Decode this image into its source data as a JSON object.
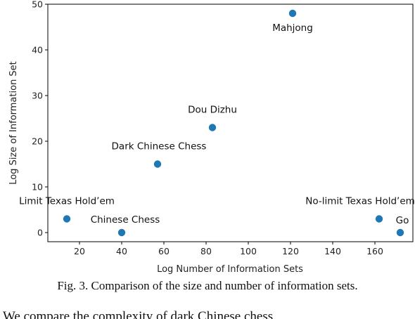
{
  "chart_data": {
    "type": "scatter",
    "xlabel": "Log Number of Information Sets",
    "ylabel": "Log Size of Information Set",
    "xlim": [
      5,
      178
    ],
    "ylim": [
      -2,
      50
    ],
    "xticks": [
      20,
      40,
      60,
      80,
      100,
      120,
      140,
      160
    ],
    "yticks": [
      0,
      10,
      20,
      30,
      40,
      50
    ],
    "grid": false,
    "point_color": "#1f77b4",
    "points": [
      {
        "label": "Limit Texas Hold’em",
        "x": 14,
        "y": 3
      },
      {
        "label": "Chinese Chess",
        "x": 40,
        "y": 0
      },
      {
        "label": "Dark Chinese Chess",
        "x": 57,
        "y": 15
      },
      {
        "label": "Dou Dizhu",
        "x": 83,
        "y": 23
      },
      {
        "label": "Mahjong",
        "x": 121,
        "y": 48
      },
      {
        "label": "No-limit Texas Hold’em",
        "x": 162,
        "y": 3
      },
      {
        "label": "Go",
        "x": 172,
        "y": 0
      }
    ]
  },
  "caption": "Fig. 3.   Comparison of the size and number of information sets.",
  "body_text": "We                    compare    the    complexity    of    dark    Chinese    chess"
}
